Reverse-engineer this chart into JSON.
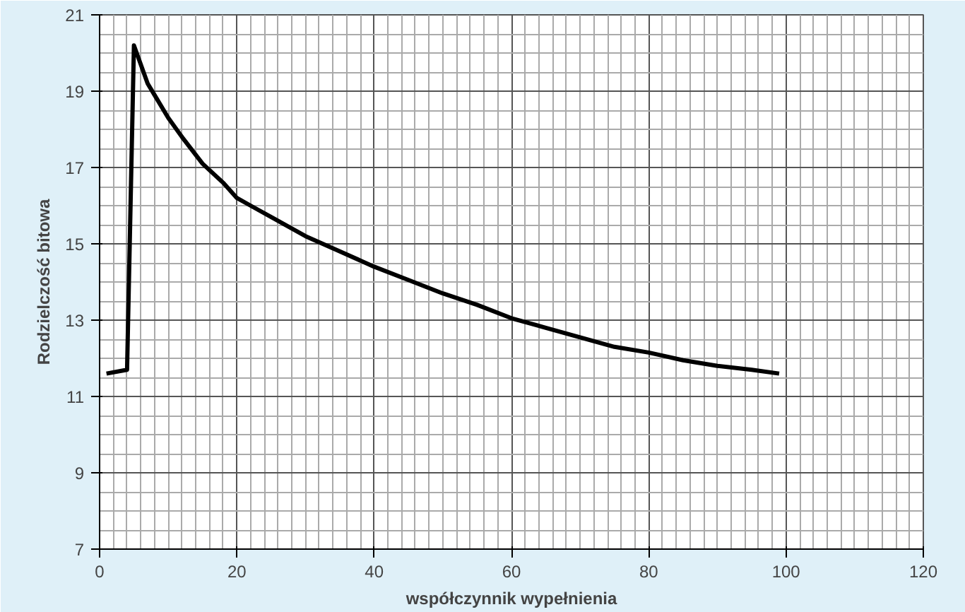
{
  "chart_data": {
    "type": "line",
    "xlabel": "współczynnik wypełnienia",
    "ylabel": "Rodzielczość bitowa",
    "xlim": [
      0,
      120
    ],
    "xticks": [
      0,
      20,
      40,
      60,
      80,
      100,
      120
    ],
    "ylim": [
      7,
      21
    ],
    "yticks": [
      7,
      9,
      11,
      13,
      15,
      17,
      19,
      21
    ],
    "grid": true,
    "marker": "none",
    "line_style": "solid",
    "series": [
      {
        "color": "#000000",
        "x": [
          1,
          4,
          5,
          6,
          7,
          8,
          10,
          12,
          15,
          18,
          20,
          22,
          25,
          30,
          35,
          40,
          45,
          50,
          55,
          60,
          65,
          70,
          75,
          80,
          85,
          90,
          95,
          99
        ],
        "values": [
          11.6,
          11.7,
          20.2,
          19.7,
          19.2,
          18.9,
          18.3,
          17.8,
          17.1,
          16.6,
          16.2,
          16.0,
          15.7,
          15.2,
          14.8,
          14.4,
          14.05,
          13.7,
          13.4,
          13.05,
          12.8,
          12.55,
          12.3,
          12.15,
          11.95,
          11.8,
          11.7,
          11.6
        ]
      }
    ]
  }
}
